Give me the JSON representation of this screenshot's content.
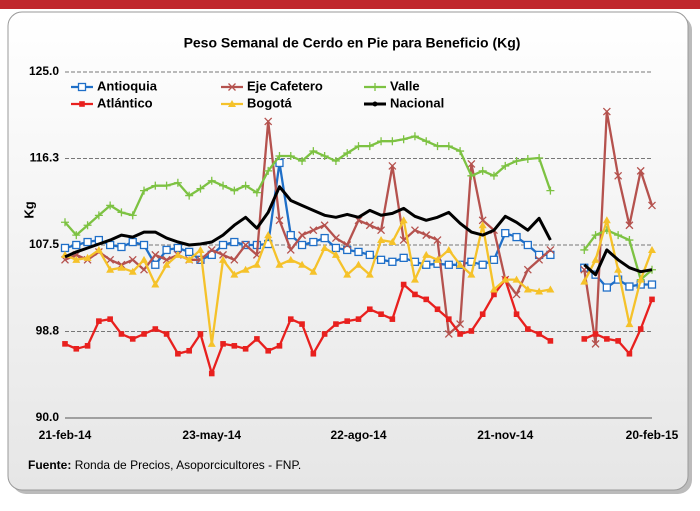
{
  "chart_data": {
    "type": "line",
    "title": "Peso Semanal de Cerdo en Pie para Beneficio (Kg)",
    "y_label": "Kg",
    "source_label": "Fuente:",
    "source": "Ronda de Precios, Asoporcicultores  - FNP.",
    "categories": [
      "21-feb-14",
      null,
      null,
      null,
      null,
      null,
      null,
      null,
      null,
      null,
      null,
      null,
      null,
      "23-may-14",
      null,
      null,
      null,
      null,
      null,
      null,
      null,
      null,
      null,
      null,
      null,
      null,
      "22-ago-14",
      null,
      null,
      null,
      null,
      null,
      null,
      null,
      null,
      null,
      null,
      null,
      null,
      "21-nov-14",
      null,
      null,
      null,
      null,
      null,
      null,
      null,
      null,
      null,
      null,
      null,
      null,
      "20-feb-15"
    ],
    "ylim": [
      90,
      125
    ],
    "yticks": [
      {
        "value": 90,
        "label": "90.0"
      },
      {
        "value": 98.75,
        "label": "98.8"
      },
      {
        "value": 107.5,
        "label": "107.5"
      },
      {
        "value": 116.25,
        "label": "116.3"
      },
      {
        "value": 125,
        "label": "125.0"
      }
    ],
    "grid": true,
    "series": [
      {
        "name": "Antioquia",
        "color": "#1f6fc8",
        "marker": "square-open",
        "values": [
          107.2,
          107.5,
          107.8,
          108,
          107.5,
          107.3,
          107.8,
          107.5,
          105.5,
          107,
          107.2,
          106.8,
          106,
          106.5,
          107.5,
          107.8,
          107.5,
          107.5,
          107.6,
          115.8,
          108.5,
          107.5,
          107.8,
          108.2,
          107.2,
          107,
          106.8,
          106.5,
          106,
          105.8,
          106.2,
          105.8,
          105.5,
          105.6,
          105.5,
          105.5,
          105.8,
          105.5,
          106,
          108.7,
          108.3,
          107.5,
          106.5,
          106.5,
          null,
          null,
          105.2,
          104.5,
          103.2,
          104,
          103.3,
          103.5,
          103.5
        ]
      },
      {
        "name": "Eje Cafetero",
        "color": "#b5524e",
        "marker": "cross",
        "values": [
          106,
          106.5,
          106,
          106.8,
          106,
          105.5,
          106,
          105,
          106.5,
          106,
          106.5,
          106,
          106,
          107,
          106.5,
          106,
          107.5,
          106.5,
          120,
          110,
          107,
          108.5,
          109,
          109.5,
          108.2,
          107.5,
          110,
          109.5,
          109,
          115.5,
          108,
          109,
          108.5,
          108,
          98.5,
          99.5,
          115.7,
          110,
          109,
          104,
          102.5,
          105,
          106,
          107,
          null,
          null,
          105,
          97.5,
          121,
          114.5,
          109.5,
          115,
          111.5
        ]
      },
      {
        "name": "Valle",
        "color": "#7dc242",
        "marker": "plus",
        "values": [
          109.8,
          108.5,
          109.5,
          110.5,
          111.5,
          110.8,
          110.5,
          113,
          113.5,
          113.5,
          113.8,
          112.5,
          113.2,
          114,
          113.5,
          113,
          113.5,
          112.8,
          115,
          116.5,
          116.5,
          116,
          117,
          116.5,
          116,
          116.8,
          117.5,
          117.5,
          118,
          118,
          118.2,
          118.5,
          118,
          117.5,
          117.5,
          117,
          114.5,
          115,
          114.5,
          115.5,
          116,
          116.2,
          116.3,
          113,
          null,
          null,
          107,
          108.5,
          109,
          108.5,
          108,
          104,
          105
        ]
      },
      {
        "name": "Atlántico",
        "color": "#e8201e",
        "marker": "square",
        "values": [
          97.5,
          97,
          97.3,
          99.8,
          100,
          98.5,
          98,
          98.5,
          99,
          98.5,
          96.5,
          96.8,
          98.5,
          94.5,
          97.5,
          97.3,
          97,
          98,
          96.8,
          97.3,
          100,
          99.5,
          96.5,
          98.5,
          99.5,
          99.8,
          100,
          101,
          100.5,
          100,
          103.5,
          102.5,
          102,
          101,
          100,
          98.5,
          98.8,
          100.5,
          102.5,
          104,
          100.5,
          99,
          98.5,
          97.8,
          null,
          null,
          98,
          98.5,
          98,
          97.8,
          96.5,
          99,
          102
        ]
      },
      {
        "name": "Bogotá",
        "color": "#f5c22a",
        "marker": "triangle",
        "values": [
          106.5,
          106,
          106.2,
          107,
          105,
          105.2,
          104.8,
          106,
          103.5,
          105.5,
          106.5,
          106,
          107,
          97.5,
          106,
          104.5,
          105,
          105.5,
          108.5,
          105.5,
          106,
          105.5,
          104.8,
          107.2,
          106.5,
          104.5,
          105.5,
          104.5,
          108,
          107.8,
          110,
          104,
          106.5,
          106,
          107,
          105.5,
          104.5,
          109.5,
          103,
          104,
          104,
          103,
          102.8,
          103,
          null,
          null,
          103.8,
          106,
          110,
          105,
          99.5,
          104,
          107
        ]
      },
      {
        "name": "Nacional",
        "color": "#000000",
        "marker": "dot",
        "values": [
          106.3,
          106.8,
          107.2,
          107.6,
          108,
          108.5,
          108.3,
          108.8,
          108.8,
          108.2,
          107.8,
          107.5,
          107.6,
          107.8,
          108.5,
          109.5,
          110.3,
          109.2,
          110.8,
          113.4,
          112,
          111.5,
          111,
          110.5,
          110.3,
          110.6,
          110.3,
          111,
          110.5,
          110.7,
          111.2,
          110.4,
          110,
          110.3,
          110.8,
          109.7,
          108.8,
          108.5,
          109,
          110.4,
          109.8,
          109,
          110.2,
          108,
          null,
          null,
          105.5,
          104.5,
          107,
          106,
          105.2,
          104.8,
          105
        ]
      }
    ]
  }
}
